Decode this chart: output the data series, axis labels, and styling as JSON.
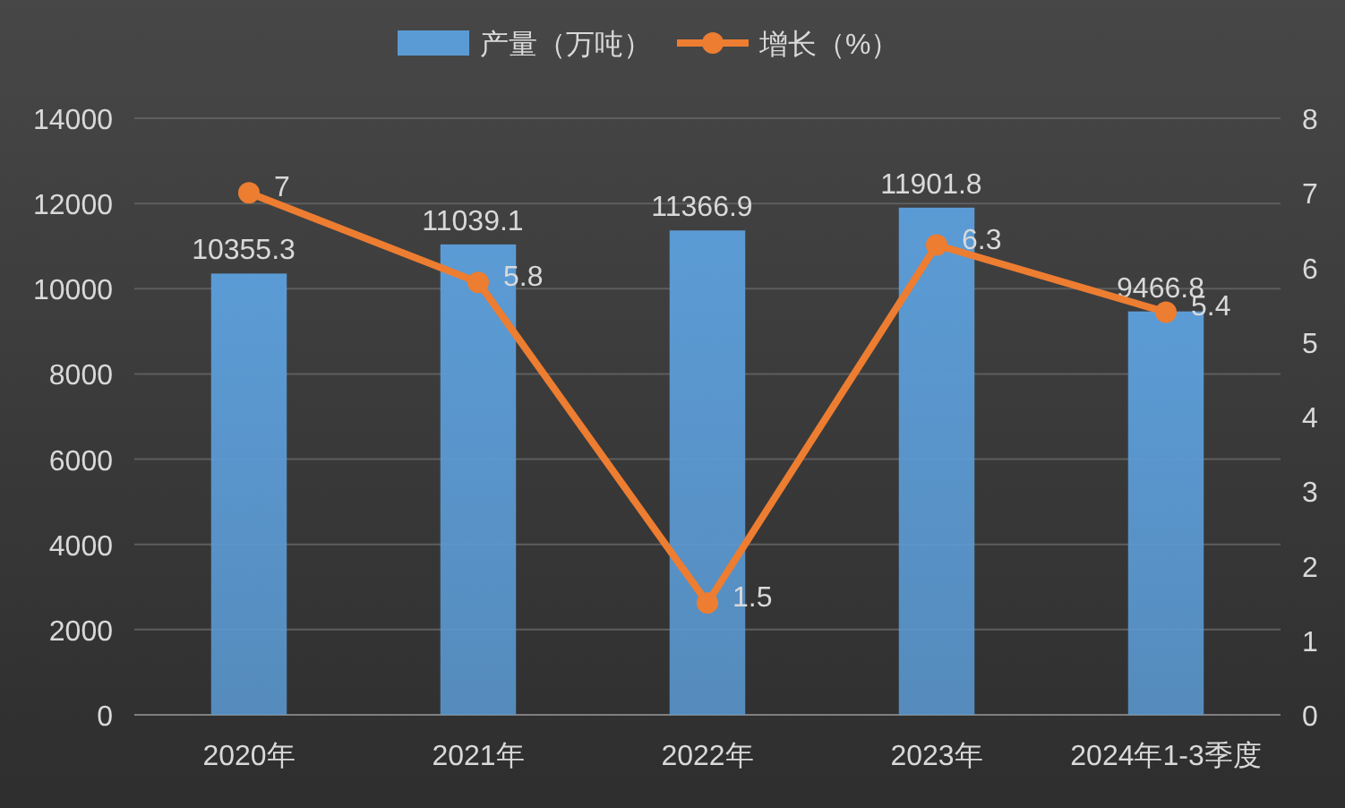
{
  "chart_data": {
    "type": "bar",
    "categories": [
      "2020年",
      "2021年",
      "2022年",
      "2023年",
      "2024年1-3季度"
    ],
    "series": [
      {
        "name": "产量（万吨）",
        "color": "#5b9bd5",
        "values": [
          10355.3,
          11039.1,
          11366.9,
          11901.8,
          9466.8
        ]
      },
      {
        "name": "增长（%）",
        "type": "line",
        "axis": "y2",
        "color": "#ed7d31",
        "marker": "circle",
        "values": [
          7,
          5.8,
          1.5,
          6.3,
          5.4
        ]
      }
    ],
    "ylim": [
      0,
      14000
    ],
    "yticks": [
      0,
      2000,
      4000,
      6000,
      8000,
      10000,
      12000,
      14000
    ],
    "y2lim": [
      0,
      8
    ],
    "y2ticks": [
      0,
      1,
      2,
      3,
      4,
      5,
      6,
      7,
      8
    ],
    "grid": "y",
    "legend": "top",
    "data_labels": true
  }
}
